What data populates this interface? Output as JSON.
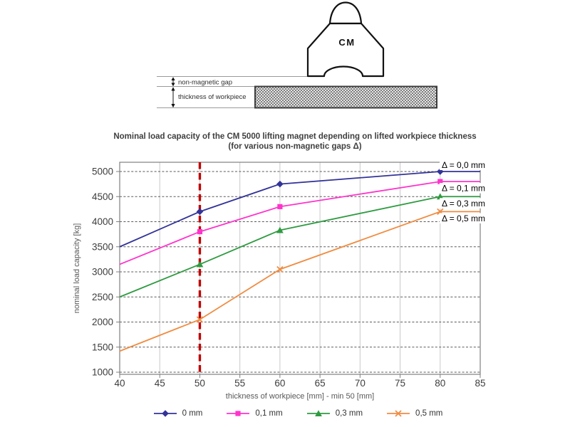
{
  "diagram": {
    "magnet_label": "CM",
    "gap_label": "non-magnetic gap",
    "workpiece_label": "thickness of workpiece"
  },
  "title": {
    "line1": "Nominal load capacity of the CM 5000 lifting magnet depending on lifted workpiece thickness",
    "line2": "(for various non-magnetic gaps Δ)"
  },
  "chart_data": {
    "type": "line",
    "title": "Nominal load capacity of the CM 5000 lifting magnet depending on lifted workpiece thickness (for various non-magnetic gaps Δ)",
    "xlabel": "thickness of workpiece [mm] - min 50 [mm]",
    "ylabel": "nominal load capacity [kg]",
    "xlim": [
      40,
      85
    ],
    "ylim": [
      1000,
      5200
    ],
    "x_ticks": [
      40,
      45,
      50,
      55,
      60,
      65,
      70,
      75,
      80,
      85
    ],
    "y_ticks": [
      1000,
      1500,
      2000,
      2500,
      3000,
      3500,
      4000,
      4500,
      5000
    ],
    "grid": true,
    "legend_position": "bottom",
    "x": [
      40,
      50,
      60,
      80,
      85
    ],
    "marker_x": [
      50,
      60,
      80
    ],
    "reference_line": {
      "x": 50,
      "color": "#c00000",
      "style": "dashed"
    },
    "series": [
      {
        "name": "0 mm",
        "annotation": "Δ = 0,0 mm",
        "color": "#333399",
        "marker": "diamond",
        "values": [
          3500,
          4200,
          4750,
          5000,
          5000
        ]
      },
      {
        "name": "0,1 mm",
        "annotation": "Δ = 0,1 mm",
        "color": "#ff33cc",
        "marker": "square",
        "values": [
          3150,
          3800,
          4300,
          4800,
          4800
        ]
      },
      {
        "name": "0,3 mm",
        "annotation": "Δ = 0,3 mm",
        "color": "#2e9b40",
        "marker": "triangle",
        "values": [
          2500,
          3150,
          3830,
          4500,
          4500
        ]
      },
      {
        "name": "0,5 mm",
        "annotation": "Δ = 0,5 mm",
        "color": "#f08c42",
        "marker": "x",
        "values": [
          1420,
          2050,
          3050,
          4200,
          4200
        ]
      }
    ]
  }
}
